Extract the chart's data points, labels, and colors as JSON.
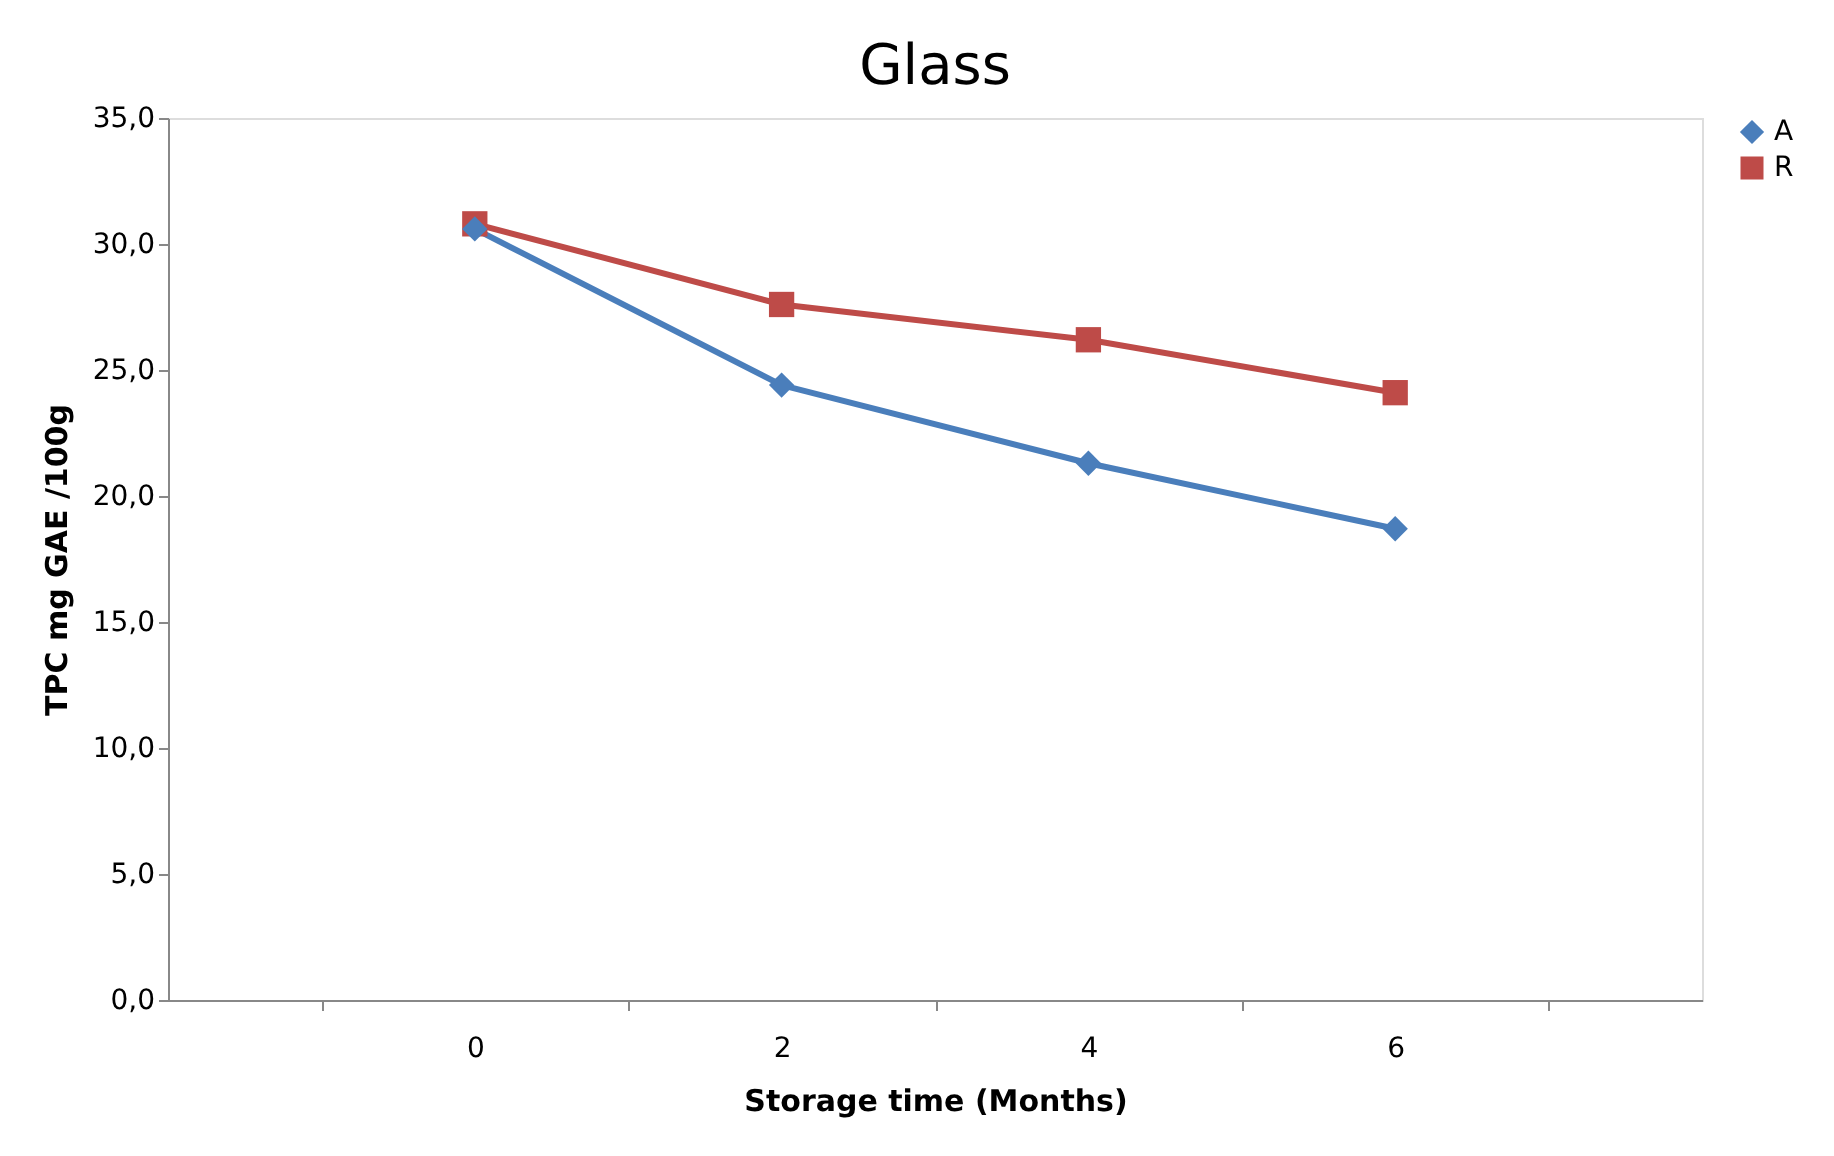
{
  "chart_data": {
    "type": "line",
    "title": "Glass",
    "xlabel": "Storage time (Months)",
    "ylabel": "TPC mg GAE /100g",
    "categories": [
      "0",
      "2",
      "4",
      "6"
    ],
    "series": [
      {
        "name": "A",
        "color": "#4a7ebb",
        "marker": "diamond",
        "values": [
          30.6,
          24.4,
          21.3,
          18.7
        ]
      },
      {
        "name": "R",
        "color": "#be4b48",
        "marker": "square",
        "values": [
          30.8,
          27.6,
          26.2,
          24.1
        ]
      }
    ],
    "ylim": [
      0,
      35
    ],
    "yticks": [
      {
        "value": 0,
        "label": "0,0"
      },
      {
        "value": 5,
        "label": "5,0"
      },
      {
        "value": 10,
        "label": "10,0"
      },
      {
        "value": 15,
        "label": "15,0"
      },
      {
        "value": 20,
        "label": "20,0"
      },
      {
        "value": 25,
        "label": "25,0"
      },
      {
        "value": 30,
        "label": "30,0"
      },
      {
        "value": 35,
        "label": "35,0"
      }
    ],
    "grid": false,
    "legend": "right",
    "line_style": "solid"
  }
}
